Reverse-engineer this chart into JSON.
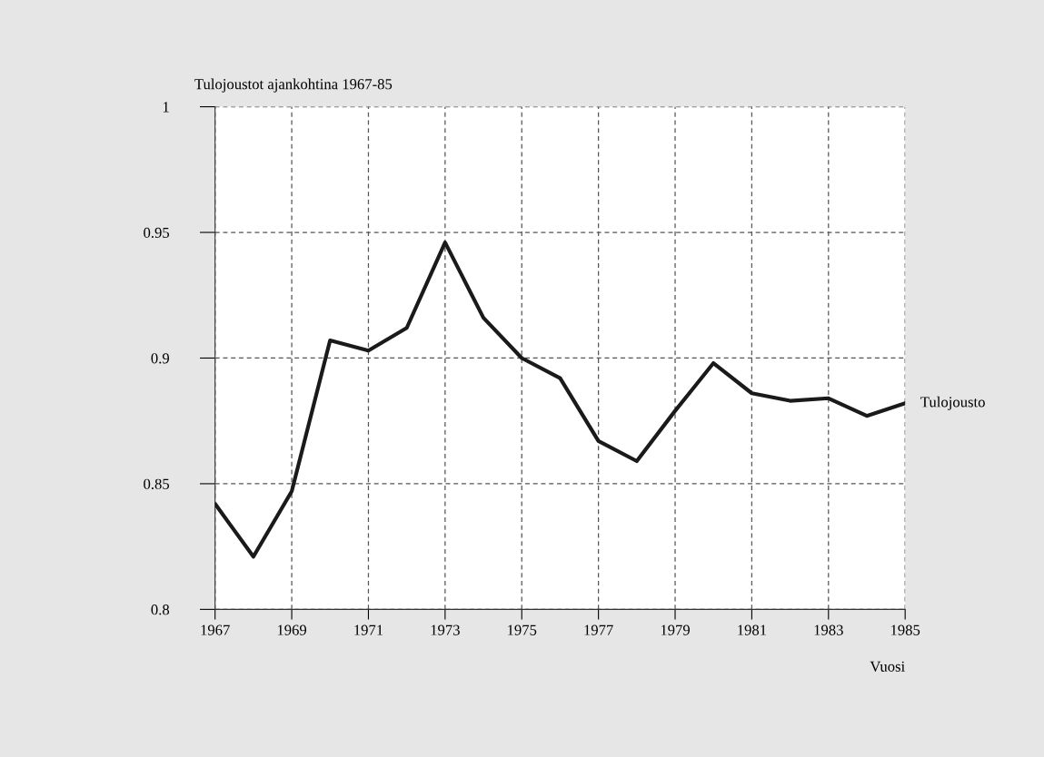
{
  "chart_data": {
    "type": "line",
    "title": "Tulojoustot ajankohtina 1967-85",
    "xlabel": "Vuosi",
    "x": [
      1967,
      1968,
      1969,
      1970,
      1971,
      1972,
      1973,
      1974,
      1975,
      1976,
      1977,
      1978,
      1979,
      1980,
      1981,
      1982,
      1983,
      1984,
      1985
    ],
    "series": [
      {
        "name": "Tulojousto",
        "color": "#1a1a1a",
        "values": [
          0.842,
          0.821,
          0.847,
          0.907,
          0.903,
          0.912,
          0.946,
          0.916,
          0.9,
          0.892,
          0.867,
          0.859,
          0.879,
          0.898,
          0.886,
          0.883,
          0.884,
          0.877,
          0.882
        ]
      }
    ],
    "xlim": [
      1967,
      1985
    ],
    "xticks": [
      1967,
      1969,
      1971,
      1973,
      1975,
      1977,
      1979,
      1981,
      1983,
      1985
    ],
    "ylim": [
      0.8,
      1
    ],
    "yticks": [
      0.8,
      0.85,
      0.9,
      0.95,
      1
    ],
    "grid": true,
    "marker": "none",
    "line_style": "solid",
    "legend": false
  }
}
